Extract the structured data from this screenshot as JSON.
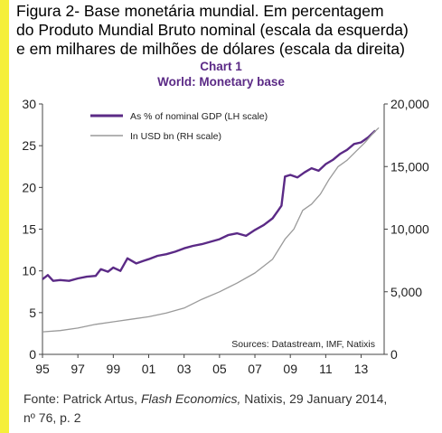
{
  "figure_title": {
    "line1": "Figura 2- Base monetária mundial.  Em percentagem",
    "line2": "do Produto Mundial Bruto nominal (escala da esquerda)",
    "line3": "e em milhares de milhões de dólares (escala da direita)"
  },
  "source_note": {
    "prefix": "Fonte: Patrick Artus, ",
    "italic": "Flash Economics,",
    "suffix": "  Natixis, 29 January 2014,",
    "line2": "nº 76, p. 2"
  },
  "colors": {
    "gdp_series": "#5b2a86",
    "usd_series": "#9a9a9a",
    "axis": "#444444",
    "left_bar": "#f5ef3a"
  },
  "chart_data": {
    "type": "line",
    "title": "Chart 1",
    "subtitle": "World: Monetary base",
    "xlabel": "",
    "ylabel": "",
    "x_ticks": [
      "95",
      "97",
      "99",
      "01",
      "03",
      "05",
      "07",
      "09",
      "11",
      "13"
    ],
    "x_range": [
      1995,
      2014.3
    ],
    "ylim_left": [
      0,
      30
    ],
    "y_ticks_left": [
      "0",
      "5",
      "10",
      "15",
      "20",
      "25",
      "30"
    ],
    "ylim_right": [
      0,
      20000
    ],
    "y_ticks_right": [
      "0",
      "5,000",
      "10,000",
      "15,000",
      "20,000"
    ],
    "grid": false,
    "legend_position": "top-left",
    "annotation": "Sources: Datastream, IMF, Natixis",
    "series": [
      {
        "name": "As % of nominal  GDP (LH scale)",
        "axis": "left",
        "points": [
          [
            1995.0,
            9.0
          ],
          [
            1995.3,
            9.5
          ],
          [
            1995.6,
            8.8
          ],
          [
            1996.0,
            8.9
          ],
          [
            1996.5,
            8.8
          ],
          [
            1997.0,
            9.1
          ],
          [
            1997.5,
            9.3
          ],
          [
            1998.0,
            9.4
          ],
          [
            1998.3,
            10.2
          ],
          [
            1998.7,
            9.9
          ],
          [
            1999.0,
            10.4
          ],
          [
            1999.4,
            10.0
          ],
          [
            1999.8,
            11.5
          ],
          [
            2000.3,
            10.9
          ],
          [
            2000.7,
            11.2
          ],
          [
            2001.0,
            11.4
          ],
          [
            2001.5,
            11.8
          ],
          [
            2002.0,
            12.0
          ],
          [
            2002.5,
            12.3
          ],
          [
            2003.0,
            12.7
          ],
          [
            2003.5,
            13.0
          ],
          [
            2004.0,
            13.2
          ],
          [
            2004.5,
            13.5
          ],
          [
            2005.0,
            13.8
          ],
          [
            2005.5,
            14.3
          ],
          [
            2006.0,
            14.5
          ],
          [
            2006.5,
            14.2
          ],
          [
            2007.0,
            14.9
          ],
          [
            2007.5,
            15.5
          ],
          [
            2008.0,
            16.3
          ],
          [
            2008.3,
            17.2
          ],
          [
            2008.5,
            17.8
          ],
          [
            2008.7,
            21.3
          ],
          [
            2009.0,
            21.5
          ],
          [
            2009.4,
            21.2
          ],
          [
            2009.8,
            21.8
          ],
          [
            2010.2,
            22.3
          ],
          [
            2010.6,
            22.0
          ],
          [
            2011.0,
            22.8
          ],
          [
            2011.4,
            23.3
          ],
          [
            2011.8,
            24.0
          ],
          [
            2012.2,
            24.5
          ],
          [
            2012.6,
            25.2
          ],
          [
            2013.0,
            25.4
          ],
          [
            2013.4,
            26.0
          ],
          [
            2013.8,
            26.8
          ]
        ]
      },
      {
        "name": "In USD bn (RH scale)",
        "axis": "right",
        "points": [
          [
            1995.0,
            1800
          ],
          [
            1996.0,
            1900
          ],
          [
            1997.0,
            2100
          ],
          [
            1998.0,
            2400
          ],
          [
            1999.0,
            2600
          ],
          [
            2000.0,
            2800
          ],
          [
            2001.0,
            3000
          ],
          [
            2002.0,
            3300
          ],
          [
            2003.0,
            3700
          ],
          [
            2004.0,
            4400
          ],
          [
            2005.0,
            5000
          ],
          [
            2006.0,
            5700
          ],
          [
            2007.0,
            6500
          ],
          [
            2008.0,
            7600
          ],
          [
            2008.7,
            9200
          ],
          [
            2009.2,
            10000
          ],
          [
            2009.7,
            11500
          ],
          [
            2010.2,
            12000
          ],
          [
            2010.7,
            12800
          ],
          [
            2011.2,
            14000
          ],
          [
            2011.7,
            15000
          ],
          [
            2012.2,
            15500
          ],
          [
            2012.7,
            16200
          ],
          [
            2013.2,
            16900
          ],
          [
            2013.7,
            17700
          ],
          [
            2014.0,
            18100
          ]
        ]
      }
    ]
  }
}
